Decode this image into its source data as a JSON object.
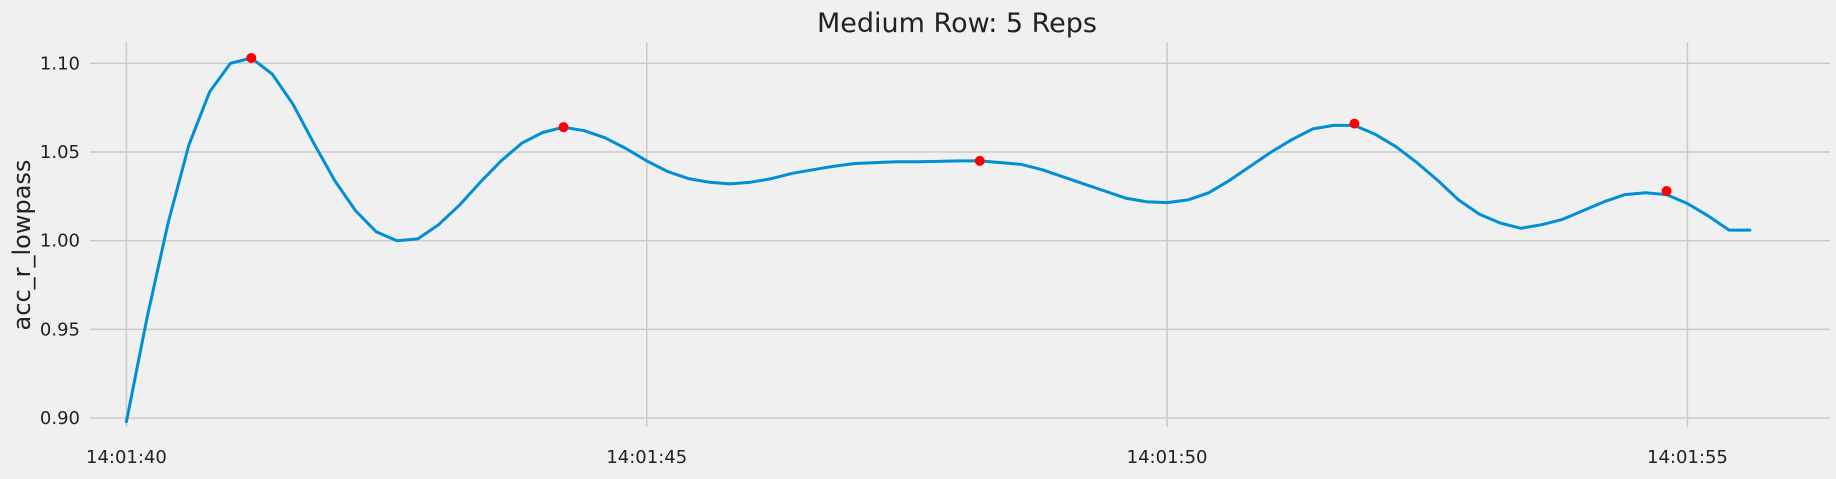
{
  "chart_data": {
    "type": "line",
    "title": "Medium Row: 5 Reps",
    "xlabel": "",
    "ylabel": "acc_r_lowpass",
    "xlim": [
      "14:01:39.65",
      "14:01:56.37"
    ],
    "ylim": [
      0.895,
      1.112
    ],
    "grid": true,
    "x_ticks": [
      "14:01:40",
      "14:01:45",
      "14:01:50",
      "14:01:55"
    ],
    "y_ticks": [
      "0.90",
      "0.95",
      "1.00",
      "1.05",
      "1.10"
    ],
    "colors": {
      "line": "#008fd5",
      "peaks": "#ff0000",
      "grid": "#cbcbcb",
      "background": "#f0f0f0"
    },
    "series": [
      {
        "kind": "line",
        "x": [
          "14:01:40.0",
          "14:01:40.2",
          "14:01:40.4",
          "14:01:40.6",
          "14:01:40.8",
          "14:01:41.0",
          "14:01:41.2",
          "14:01:41.4",
          "14:01:41.6",
          "14:01:41.8",
          "14:01:42.0",
          "14:01:42.2",
          "14:01:42.4",
          "14:01:42.6",
          "14:01:42.8",
          "14:01:43.0",
          "14:01:43.2",
          "14:01:43.4",
          "14:01:43.6",
          "14:01:43.8",
          "14:01:44.0",
          "14:01:44.2",
          "14:01:44.4",
          "14:01:44.6",
          "14:01:44.8",
          "14:01:45.0",
          "14:01:45.2",
          "14:01:45.4",
          "14:01:45.6",
          "14:01:45.8",
          "14:01:46.0",
          "14:01:46.2",
          "14:01:46.4",
          "14:01:46.6",
          "14:01:46.8",
          "14:01:47.0",
          "14:01:47.2",
          "14:01:47.4",
          "14:01:47.6",
          "14:01:47.8",
          "14:01:48.0",
          "14:01:48.2",
          "14:01:48.4",
          "14:01:48.6",
          "14:01:48.8",
          "14:01:49.0",
          "14:01:49.2",
          "14:01:49.4",
          "14:01:49.6",
          "14:01:49.8",
          "14:01:50.0",
          "14:01:50.2",
          "14:01:50.4",
          "14:01:50.6",
          "14:01:50.8",
          "14:01:51.0",
          "14:01:51.2",
          "14:01:51.4",
          "14:01:51.6",
          "14:01:51.8",
          "14:01:52.0",
          "14:01:52.2",
          "14:01:52.4",
          "14:01:52.6",
          "14:01:52.8",
          "14:01:53.0",
          "14:01:53.2",
          "14:01:53.4",
          "14:01:53.6",
          "14:01:53.8",
          "14:01:54.0",
          "14:01:54.2",
          "14:01:54.4",
          "14:01:54.6",
          "14:01:54.8",
          "14:01:55.0",
          "14:01:55.2",
          "14:01:55.4",
          "14:01:55.6"
        ],
        "y": [
          0.898,
          0.957,
          1.01,
          1.054,
          1.084,
          1.1,
          1.103,
          1.094,
          1.077,
          1.055,
          1.034,
          1.017,
          1.005,
          1.0,
          1.001,
          1.009,
          1.02,
          1.033,
          1.045,
          1.055,
          1.061,
          1.064,
          1.062,
          1.058,
          1.052,
          1.045,
          1.039,
          1.035,
          1.033,
          1.032,
          1.033,
          1.035,
          1.038,
          1.04,
          1.042,
          1.0435,
          1.044,
          1.0445,
          1.0445,
          1.0447,
          1.045,
          1.045,
          1.044,
          1.043,
          1.04,
          1.036,
          1.032,
          1.028,
          1.024,
          1.022,
          1.0215,
          1.023,
          1.027,
          1.034,
          1.042,
          1.05,
          1.057,
          1.063,
          1.065,
          1.065,
          1.06,
          1.053,
          1.044,
          1.034,
          1.023,
          1.015,
          1.01,
          1.007,
          1.009,
          1.012,
          1.017,
          1.022,
          1.026,
          1.027,
          1.026,
          1.021,
          1.014,
          1.006,
          1.006
        ]
      },
      {
        "kind": "points",
        "x": [
          "14:01:41.2",
          "14:01:44.2",
          "14:01:48.2",
          "14:01:51.8",
          "14:01:54.8"
        ],
        "y": [
          1.103,
          1.064,
          1.045,
          1.066,
          1.028
        ]
      }
    ]
  }
}
